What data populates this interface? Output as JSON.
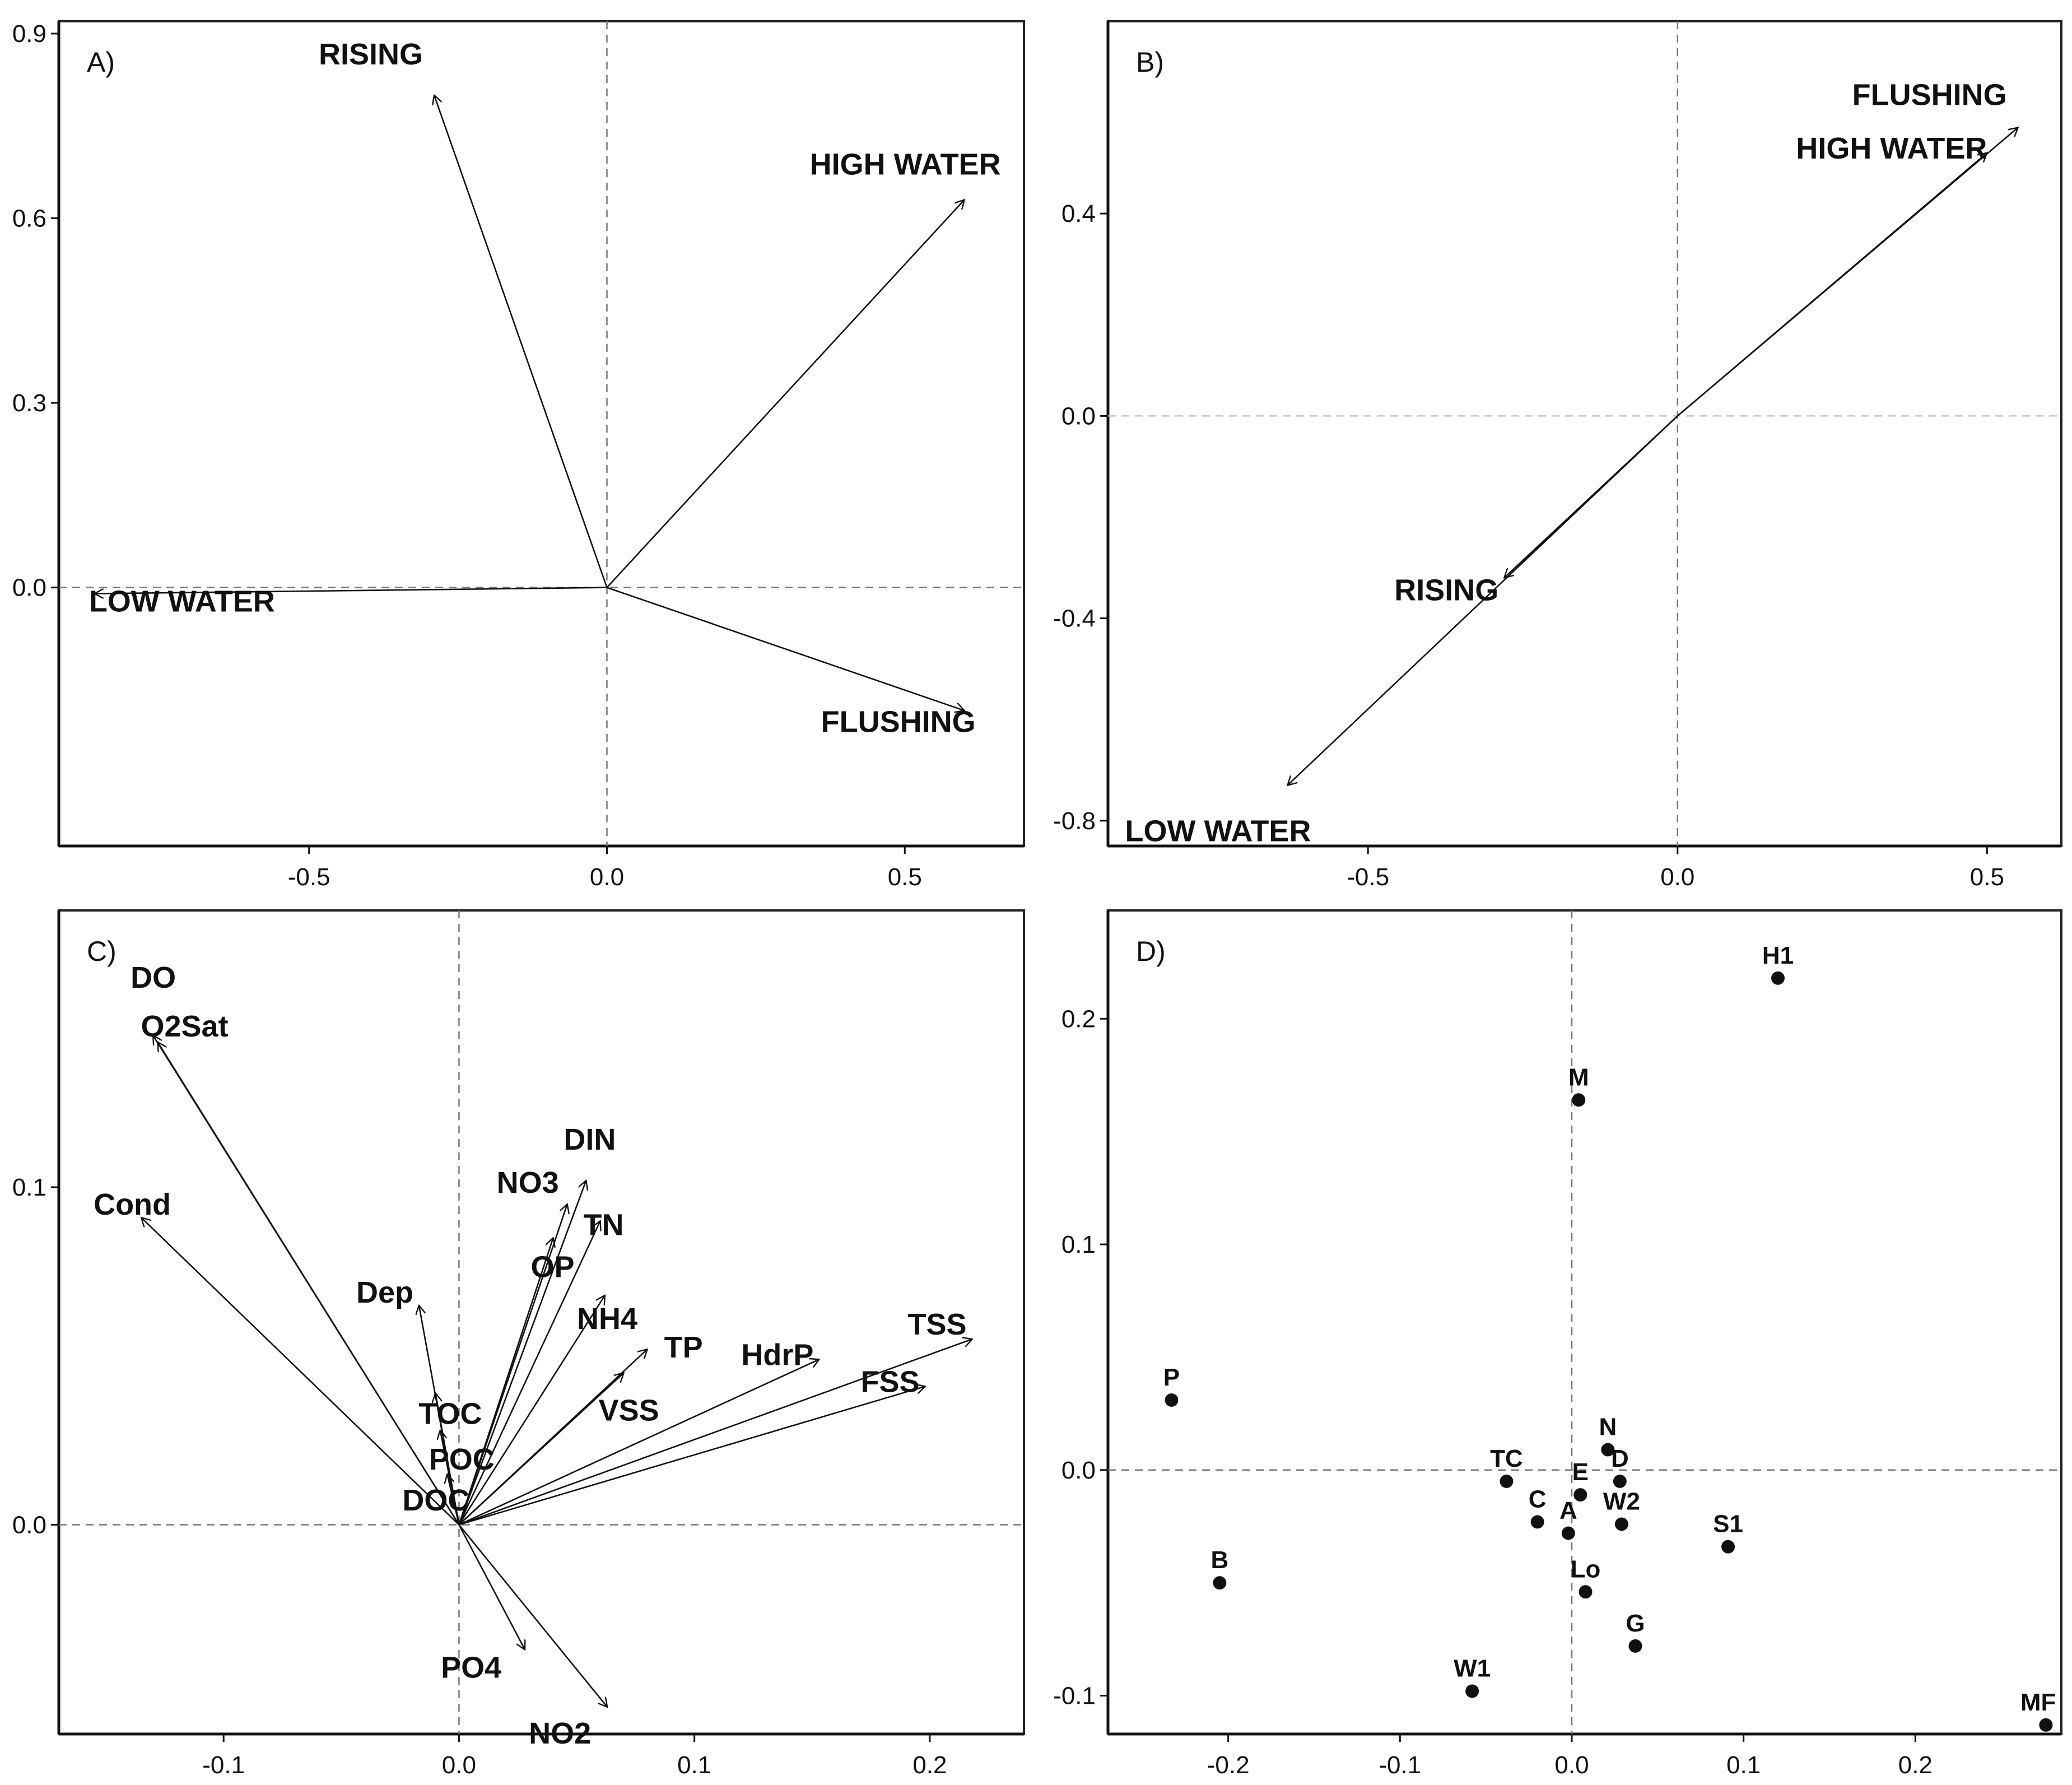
{
  "chart_data": [
    {
      "panel": "A)",
      "type": "scatter",
      "subtype": "biplot-vectors",
      "xlim": [
        -0.92,
        0.7
      ],
      "ylim": [
        -0.42,
        0.92
      ],
      "xticks": [
        -0.5,
        0.0,
        0.5
      ],
      "yticks": [
        0.0,
        0.3,
        0.6,
        0.9
      ],
      "xtick_labels": [
        "-0.5",
        "0.0",
        "0.5"
      ],
      "ytick_labels": [
        "0.0",
        "0.3",
        "0.6",
        "0.9"
      ],
      "grid": "dashed zero lines",
      "vectors": [
        {
          "name": "RISING",
          "x": -0.29,
          "y": 0.8
        },
        {
          "name": "HIGH WATER",
          "x": 0.6,
          "y": 0.63
        },
        {
          "name": "LOW WATER",
          "x": -0.86,
          "y": -0.01
        },
        {
          "name": "FLUSHING",
          "x": 0.6,
          "y": -0.2
        }
      ]
    },
    {
      "panel": "B)",
      "type": "scatter",
      "subtype": "biplot-vectors",
      "xlim": [
        -0.92,
        0.62
      ],
      "ylim": [
        -0.85,
        0.78
      ],
      "xticks": [
        -0.5,
        0.0,
        0.5
      ],
      "yticks": [
        -0.8,
        -0.4,
        0.0,
        0.4
      ],
      "xtick_labels": [
        "-0.5",
        "0.0",
        "0.5"
      ],
      "ytick_labels": [
        "-0.8",
        "-0.4",
        "0.0",
        "0.4"
      ],
      "grid": "dashed zero lines",
      "vectors": [
        {
          "name": "FLUSHING",
          "x": 0.55,
          "y": 0.57
        },
        {
          "name": "HIGH WATER",
          "x": 0.5,
          "y": 0.52
        },
        {
          "name": "RISING",
          "x": -0.28,
          "y": -0.32
        },
        {
          "name": "LOW WATER",
          "x": -0.63,
          "y": -0.73
        }
      ]
    },
    {
      "panel": "C)",
      "type": "scatter",
      "subtype": "biplot-vectors",
      "xlim": [
        -0.17,
        0.24
      ],
      "ylim": [
        -0.062,
        0.182
      ],
      "xticks": [
        -0.1,
        0.0,
        0.1,
        0.2
      ],
      "yticks": [
        0.0,
        0.1
      ],
      "xtick_labels": [
        "-0.1",
        "0.0",
        "0.1",
        "0.2"
      ],
      "ytick_labels": [
        "0.0",
        "0.1"
      ],
      "grid": "dashed zero lines",
      "vectors": [
        {
          "name": "DO",
          "x": -0.13,
          "y": 0.145
        },
        {
          "name": "O2Sat",
          "x": -0.128,
          "y": 0.143
        },
        {
          "name": "Cond",
          "x": -0.135,
          "y": 0.091
        },
        {
          "name": "Dep",
          "x": -0.017,
          "y": 0.065
        },
        {
          "name": "TOC",
          "x": -0.01,
          "y": 0.039
        },
        {
          "name": "POC",
          "x": -0.008,
          "y": 0.028
        },
        {
          "name": "DOC",
          "x": -0.005,
          "y": 0.015
        },
        {
          "name": "NO3",
          "x": 0.046,
          "y": 0.095
        },
        {
          "name": "DIN",
          "x": 0.054,
          "y": 0.102
        },
        {
          "name": "TN",
          "x": 0.06,
          "y": 0.09
        },
        {
          "name": "OP",
          "x": 0.04,
          "y": 0.085
        },
        {
          "name": "NH4",
          "x": 0.062,
          "y": 0.068
        },
        {
          "name": "TP",
          "x": 0.08,
          "y": 0.052
        },
        {
          "name": "VSS",
          "x": 0.07,
          "y": 0.045
        },
        {
          "name": "HdrP",
          "x": 0.153,
          "y": 0.049
        },
        {
          "name": "TSS",
          "x": 0.218,
          "y": 0.055
        },
        {
          "name": "FSS",
          "x": 0.198,
          "y": 0.041
        },
        {
          "name": "PO4",
          "x": 0.028,
          "y": -0.037
        },
        {
          "name": "NO2",
          "x": 0.063,
          "y": -0.054
        }
      ]
    },
    {
      "panel": "D)",
      "type": "scatter",
      "xlim": [
        -0.27,
        0.285
      ],
      "ylim": [
        -0.117,
        0.248
      ],
      "xticks": [
        -0.2,
        -0.1,
        0.0,
        0.1,
        0.2
      ],
      "yticks": [
        -0.1,
        0.0,
        0.1,
        0.2
      ],
      "xtick_labels": [
        "-0.2",
        "-0.1",
        "0.0",
        "0.1",
        "0.2"
      ],
      "ytick_labels": [
        "-0.1",
        "0.0",
        "0.1",
        "0.2"
      ],
      "grid": "dashed zero lines",
      "points": [
        {
          "name": "H1",
          "x": 0.12,
          "y": 0.218
        },
        {
          "name": "M",
          "x": 0.004,
          "y": 0.164
        },
        {
          "name": "P",
          "x": -0.233,
          "y": 0.031
        },
        {
          "name": "N",
          "x": 0.021,
          "y": 0.009
        },
        {
          "name": "TC",
          "x": -0.038,
          "y": -0.005
        },
        {
          "name": "D",
          "x": 0.028,
          "y": -0.005
        },
        {
          "name": "E",
          "x": 0.005,
          "y": -0.011
        },
        {
          "name": "C",
          "x": -0.02,
          "y": -0.023
        },
        {
          "name": "W2",
          "x": 0.029,
          "y": -0.024
        },
        {
          "name": "A",
          "x": -0.002,
          "y": -0.028
        },
        {
          "name": "S1",
          "x": 0.091,
          "y": -0.034
        },
        {
          "name": "B",
          "x": -0.205,
          "y": -0.05
        },
        {
          "name": "Lo",
          "x": 0.008,
          "y": -0.054
        },
        {
          "name": "G",
          "x": 0.037,
          "y": -0.078
        },
        {
          "name": "W1",
          "x": -0.058,
          "y": -0.098
        },
        {
          "name": "MF",
          "x": 0.276,
          "y": -0.113
        }
      ]
    }
  ]
}
